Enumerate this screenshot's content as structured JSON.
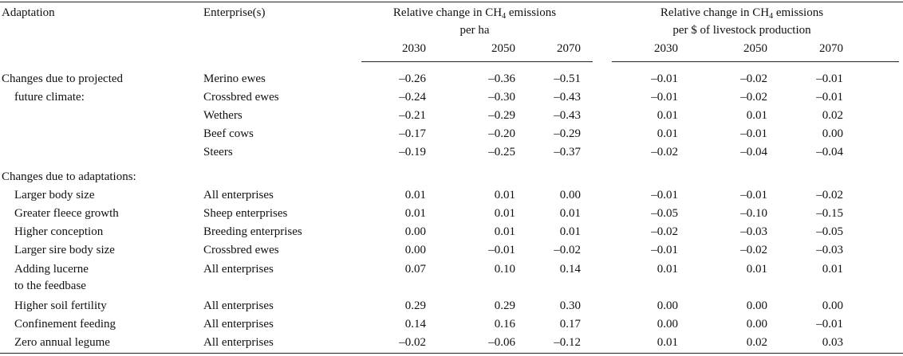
{
  "headers": {
    "adaptation": "Adaptation",
    "enterprises": "Enterprise(s)",
    "group_ha_line1_prefix": "Relative change in CH",
    "group_ha_line1_sub": "4",
    "group_ha_line1_suffix": " emissions",
    "group_ha_line2": "per ha",
    "group_prod_line1": "Relative change in CH",
    "group_prod_line1_sub": "4",
    "group_prod_line1_suffix": " emissions",
    "group_prod_line2": "per $ of livestock production",
    "years": [
      "2030",
      "2050",
      "2070",
      "2030",
      "2050",
      "2070"
    ]
  },
  "sections": [
    {
      "title_line1": "Changes due to projected",
      "title_line2": "future climate:",
      "rows": [
        {
          "enterprise": "Merino ewes",
          "values": [
            "–0.26",
            "–0.36",
            "–0.51",
            "–0.01",
            "–0.02",
            "–0.01"
          ]
        },
        {
          "enterprise": "Crossbred ewes",
          "values": [
            "–0.24",
            "–0.30",
            "–0.43",
            "–0.01",
            "–0.02",
            "–0.01"
          ]
        },
        {
          "enterprise": "Wethers",
          "values": [
            "–0.21",
            "–0.29",
            "–0.43",
            "0.01",
            "0.01",
            "0.02"
          ]
        },
        {
          "enterprise": "Beef cows",
          "values": [
            "–0.17",
            "–0.20",
            "–0.29",
            "0.01",
            "–0.01",
            "0.00"
          ]
        },
        {
          "enterprise": "Steers",
          "values": [
            "–0.19",
            "–0.25",
            "–0.37",
            "–0.02",
            "–0.04",
            "–0.04"
          ]
        }
      ]
    },
    {
      "title_line1": "Changes due to adaptations:",
      "rows": [
        {
          "adaptation": "Larger body size",
          "enterprise": "All enterprises",
          "values": [
            "0.01",
            "0.01",
            "0.00",
            "–0.01",
            "–0.01",
            "–0.02"
          ]
        },
        {
          "adaptation": "Greater fleece growth",
          "enterprise": "Sheep enterprises",
          "values": [
            "0.01",
            "0.01",
            "0.01",
            "–0.05",
            "–0.10",
            "–0.15"
          ]
        },
        {
          "adaptation": "Higher conception",
          "enterprise": "Breeding enterprises",
          "values": [
            "0.00",
            "0.01",
            "0.01",
            "–0.02",
            "–0.03",
            "–0.05"
          ]
        },
        {
          "adaptation": "Larger sire body size",
          "enterprise": "Crossbred ewes",
          "values": [
            "0.00",
            "–0.01",
            "–0.02",
            "–0.01",
            "–0.02",
            "–0.03"
          ]
        },
        {
          "adaptation": "Adding lucerne",
          "adaptation_line2": "to the feedbase",
          "enterprise": "All enterprises",
          "values": [
            "0.07",
            "0.10",
            "0.14",
            "0.01",
            "0.01",
            "0.01"
          ]
        },
        {
          "adaptation": "Higher soil fertility",
          "enterprise": "All enterprises",
          "values": [
            "0.29",
            "0.29",
            "0.30",
            "0.00",
            "0.00",
            "0.00"
          ]
        },
        {
          "adaptation": "Confinement feeding",
          "enterprise": "All enterprises",
          "values": [
            "0.14",
            "0.16",
            "0.17",
            "0.00",
            "0.00",
            "–0.01"
          ]
        },
        {
          "adaptation": "Zero annual legume",
          "enterprise": "All enterprises",
          "values": [
            "–0.02",
            "–0.06",
            "–0.12",
            "0.01",
            "0.02",
            "0.03"
          ]
        }
      ]
    }
  ]
}
